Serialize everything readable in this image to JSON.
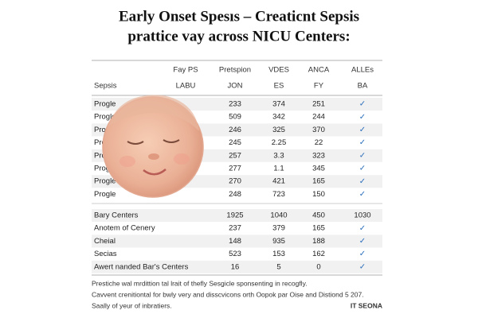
{
  "header": {
    "title": [
      "Early Onset Spesıs – Creaticnt Sepsis",
      "prattice vay across NICU Centers:"
    ]
  },
  "table": {
    "head": [
      [
        "",
        "Fay PS",
        "Pretspion",
        "VDES",
        "ANCA",
        "ALLEs"
      ],
      [
        "Sepsis",
        "LABU",
        "JON",
        "ES",
        "FY",
        "BA"
      ]
    ],
    "rows": [
      [
        "Progle",
        "233",
        "374",
        "251",
        "✓"
      ],
      [
        "Progle",
        "509",
        "342",
        "244",
        "✓"
      ],
      [
        "Progle",
        "246",
        "325",
        "370",
        "✓"
      ],
      [
        "Progle",
        "245",
        "2.25",
        "22",
        "✓"
      ],
      [
        "Progle",
        "257",
        "3.3",
        "323",
        "✓"
      ],
      [
        "Progle",
        "277",
        "1.1",
        "345",
        "✓"
      ],
      [
        "Progle",
        "270",
        "421",
        "165",
        "✓"
      ],
      [
        "Progle",
        "248",
        "723",
        "150",
        "✓"
      ]
    ],
    "rows2": [
      [
        "Bary Centers",
        "1925",
        "1040",
        "450",
        "1030"
      ],
      [
        "Anotem of Cenery",
        "237",
        "379",
        "165",
        "✓"
      ],
      [
        "Cheial",
        "148",
        "935",
        "188",
        "✓"
      ],
      [
        "Secias",
        "523",
        "153",
        "162",
        "✓"
      ],
      [
        "Awert nanded Bar's Centers",
        "16",
        "5",
        "0",
        "✓"
      ]
    ]
  },
  "footer": {
    "lines": [
      "Prestiche wal mrdittion tal lrait of thefly Sesgicle sponsenting in recogfly.",
      "Cavvent crenitiontal for bwly very and disscvicons orth Oopok par Oise and Distiond 5 207.",
      "Saally of yeur of inbratiers."
    ],
    "brand": "IT SEONA"
  }
}
